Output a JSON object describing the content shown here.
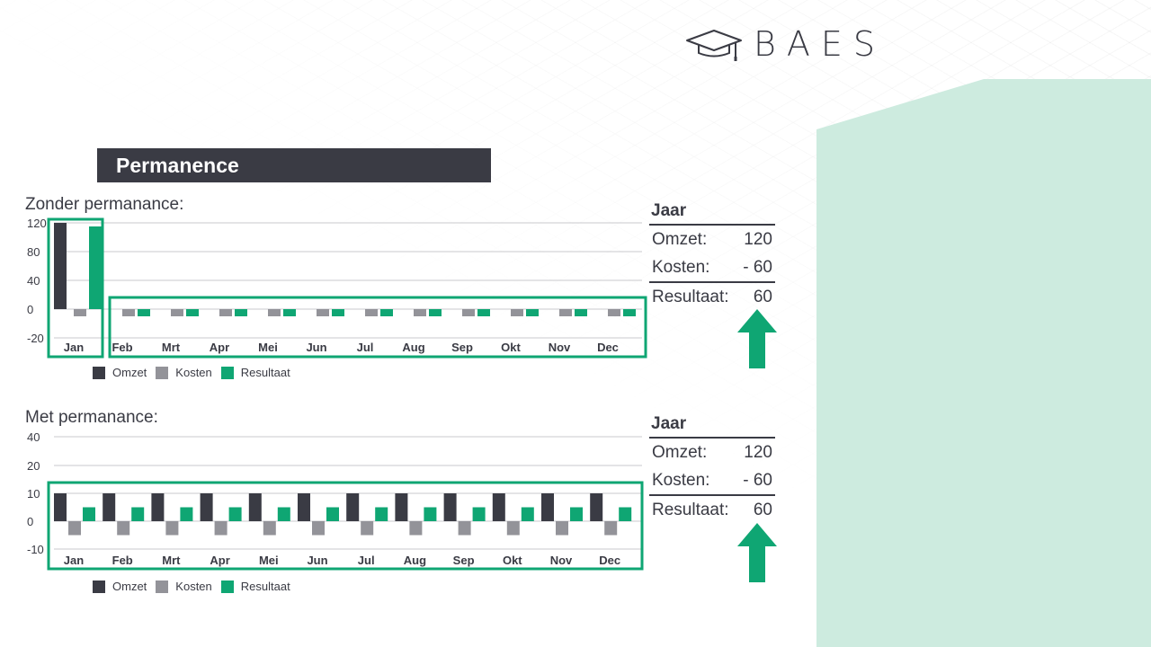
{
  "brand": {
    "name": "BAES"
  },
  "title": "Permanence",
  "colors": {
    "omzet": "#3a3b44",
    "kosten": "#939399",
    "resultaat": "#0fa673",
    "highlight": "#0fa673",
    "accent_bg": "#cdebdf"
  },
  "icons": [
    "graduation-cap-icon",
    "arrow-up-icon"
  ],
  "legend": [
    {
      "label": "Omzet",
      "color": "#3a3b44"
    },
    {
      "label": "Kosten",
      "color": "#939399"
    },
    {
      "label": "Resultaat",
      "color": "#0fa673"
    }
  ],
  "chart_data": [
    {
      "type": "bar",
      "title": "Zonder permanance:",
      "categories": [
        "Jan",
        "Feb",
        "Mrt",
        "Apr",
        "Mei",
        "Jun",
        "Jul",
        "Aug",
        "Sep",
        "Okt",
        "Nov",
        "Dec"
      ],
      "series": [
        {
          "name": "Omzet",
          "values": [
            120,
            0,
            0,
            0,
            0,
            0,
            0,
            0,
            0,
            0,
            0,
            0
          ]
        },
        {
          "name": "Kosten",
          "values": [
            -5,
            -5,
            -5,
            -5,
            -5,
            -5,
            -5,
            -5,
            -5,
            -5,
            -5,
            -5
          ]
        },
        {
          "name": "Resultaat",
          "values": [
            115,
            -5,
            -5,
            -5,
            -5,
            -5,
            -5,
            -5,
            -5,
            -5,
            -5,
            -5
          ]
        }
      ],
      "yticks": [
        120,
        80,
        40,
        0,
        -20
      ],
      "grid": true,
      "legend_position": "bottom-left",
      "highlighted_groups": [
        [
          "Jan"
        ],
        [
          "Feb",
          "Dec"
        ]
      ]
    },
    {
      "type": "bar",
      "title": "Met permanance:",
      "categories": [
        "Jan",
        "Feb",
        "Mrt",
        "Apr",
        "Mei",
        "Jun",
        "Jul",
        "Aug",
        "Sep",
        "Okt",
        "Nov",
        "Dec"
      ],
      "series": [
        {
          "name": "Omzet",
          "values": [
            10,
            10,
            10,
            10,
            10,
            10,
            10,
            10,
            10,
            10,
            10,
            10
          ]
        },
        {
          "name": "Kosten",
          "values": [
            -5,
            -5,
            -5,
            -5,
            -5,
            -5,
            -5,
            -5,
            -5,
            -5,
            -5,
            -5
          ]
        },
        {
          "name": "Resultaat",
          "values": [
            5,
            5,
            5,
            5,
            5,
            5,
            5,
            5,
            5,
            5,
            5,
            5
          ]
        }
      ],
      "yticks": [
        40,
        20,
        10,
        0,
        -10
      ],
      "grid": true,
      "legend_position": "bottom-left",
      "highlighted_groups": [
        [
          "Jan",
          "Dec"
        ]
      ]
    }
  ],
  "summaries": [
    {
      "heading": "Jaar",
      "omzet_label": "Omzet:",
      "omzet_value": "120",
      "kosten_label": "Kosten:",
      "kosten_value": "- 60",
      "resultaat_label": "Resultaat:",
      "resultaat_value": "60"
    },
    {
      "heading": "Jaar",
      "omzet_label": "Omzet:",
      "omzet_value": "120",
      "kosten_label": "Kosten:",
      "kosten_value": "- 60",
      "resultaat_label": "Resultaat:",
      "resultaat_value": "60"
    }
  ]
}
